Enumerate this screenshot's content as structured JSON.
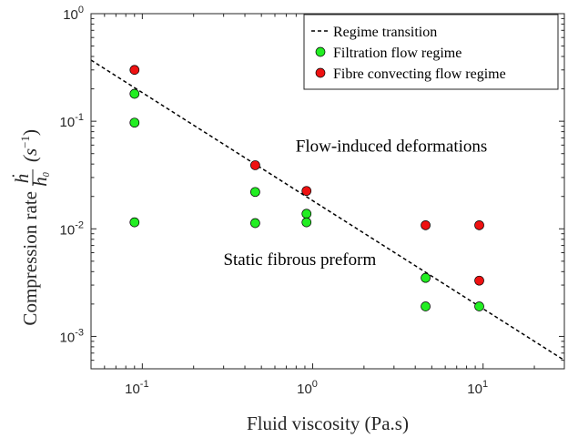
{
  "chart_data": {
    "type": "scatter",
    "xlabel": "Fluid viscosity (Pa.s)",
    "ylabel_prefix": "Compression rate",
    "xscale": "log",
    "yscale": "log",
    "xlim": [
      0.05,
      30
    ],
    "ylim": [
      0.0005,
      1
    ],
    "x_ticks": [
      {
        "value": 0.1,
        "base": "10",
        "exp": "-1"
      },
      {
        "value": 1,
        "base": "10",
        "exp": "0"
      },
      {
        "value": 10,
        "base": "10",
        "exp": "1"
      }
    ],
    "y_ticks": [
      {
        "value": 0.001,
        "base": "10",
        "exp": "-3"
      },
      {
        "value": 0.01,
        "base": "10",
        "exp": "-2"
      },
      {
        "value": 0.1,
        "base": "10",
        "exp": "-1"
      },
      {
        "value": 1,
        "base": "10",
        "exp": "0"
      }
    ],
    "grid": false,
    "legend_position": "top-right",
    "series": [
      {
        "name": "Regime transition",
        "kind": "line",
        "style": "dashed",
        "color": "#000000",
        "points": [
          [
            0.05,
            0.37
          ],
          [
            30,
            0.0006
          ]
        ]
      },
      {
        "name": "Filtration flow regime",
        "kind": "points",
        "color": "#22ee22",
        "points": [
          [
            0.09,
            0.18
          ],
          [
            0.09,
            0.097
          ],
          [
            0.09,
            0.0115
          ],
          [
            0.46,
            0.022
          ],
          [
            0.46,
            0.0113
          ],
          [
            0.92,
            0.0138
          ],
          [
            0.92,
            0.0115
          ],
          [
            4.6,
            0.0035
          ],
          [
            4.6,
            0.0019
          ],
          [
            9.5,
            0.0019
          ]
        ]
      },
      {
        "name": "Fibre convecting flow regime",
        "kind": "points",
        "color": "#ee1111",
        "points": [
          [
            0.09,
            0.3
          ],
          [
            0.46,
            0.039
          ],
          [
            0.92,
            0.0225
          ],
          [
            4.6,
            0.0108
          ],
          [
            9.5,
            0.0108
          ],
          [
            9.5,
            0.0033
          ]
        ]
      }
    ],
    "annotations": [
      {
        "text": "Flow-induced deformations",
        "x": 2.9,
        "y": 0.052
      },
      {
        "text": "Static fibrous preform",
        "x": 0.84,
        "y": 0.0046
      }
    ]
  }
}
